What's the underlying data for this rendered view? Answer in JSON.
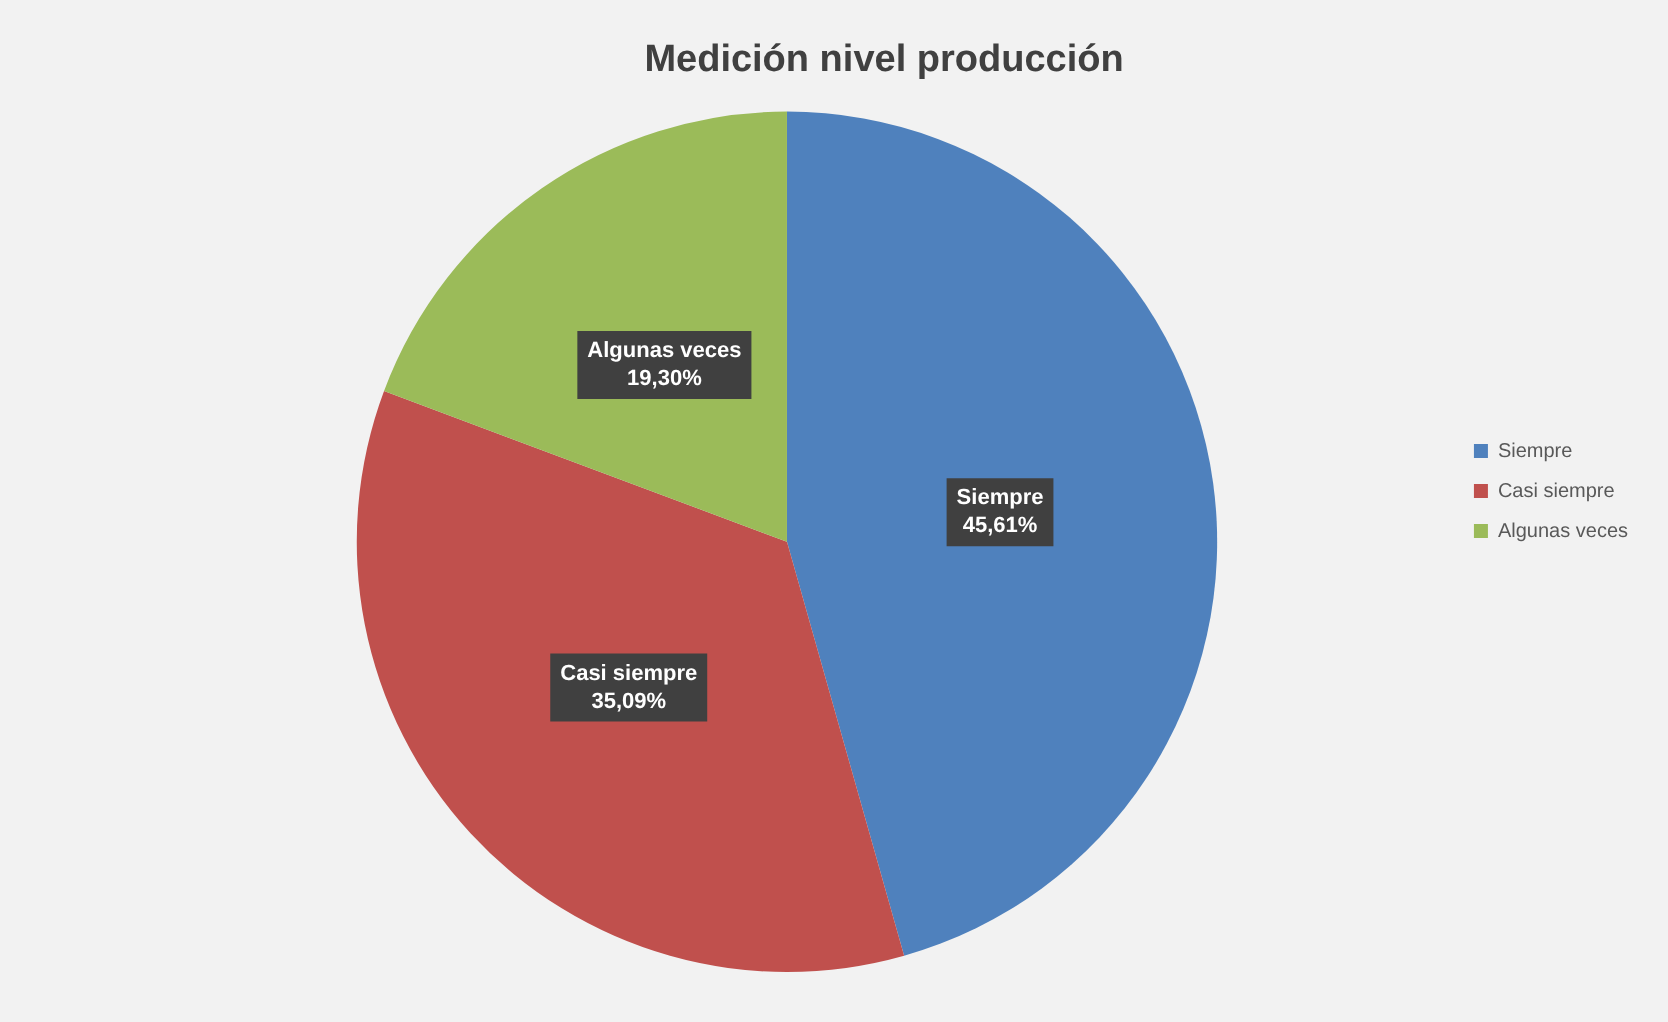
{
  "chart_data": {
    "type": "pie",
    "title": "Medición nivel producción",
    "categories": [
      "Siempre",
      "Casi siempre",
      "Algunas veces"
    ],
    "values": [
      45.61,
      35.09,
      19.3
    ],
    "value_labels": [
      "45,61%",
      "35,09%",
      "19,30%"
    ],
    "colors": [
      "#4f81bd",
      "#c0504d",
      "#9bbb59"
    ],
    "legend": "right"
  }
}
